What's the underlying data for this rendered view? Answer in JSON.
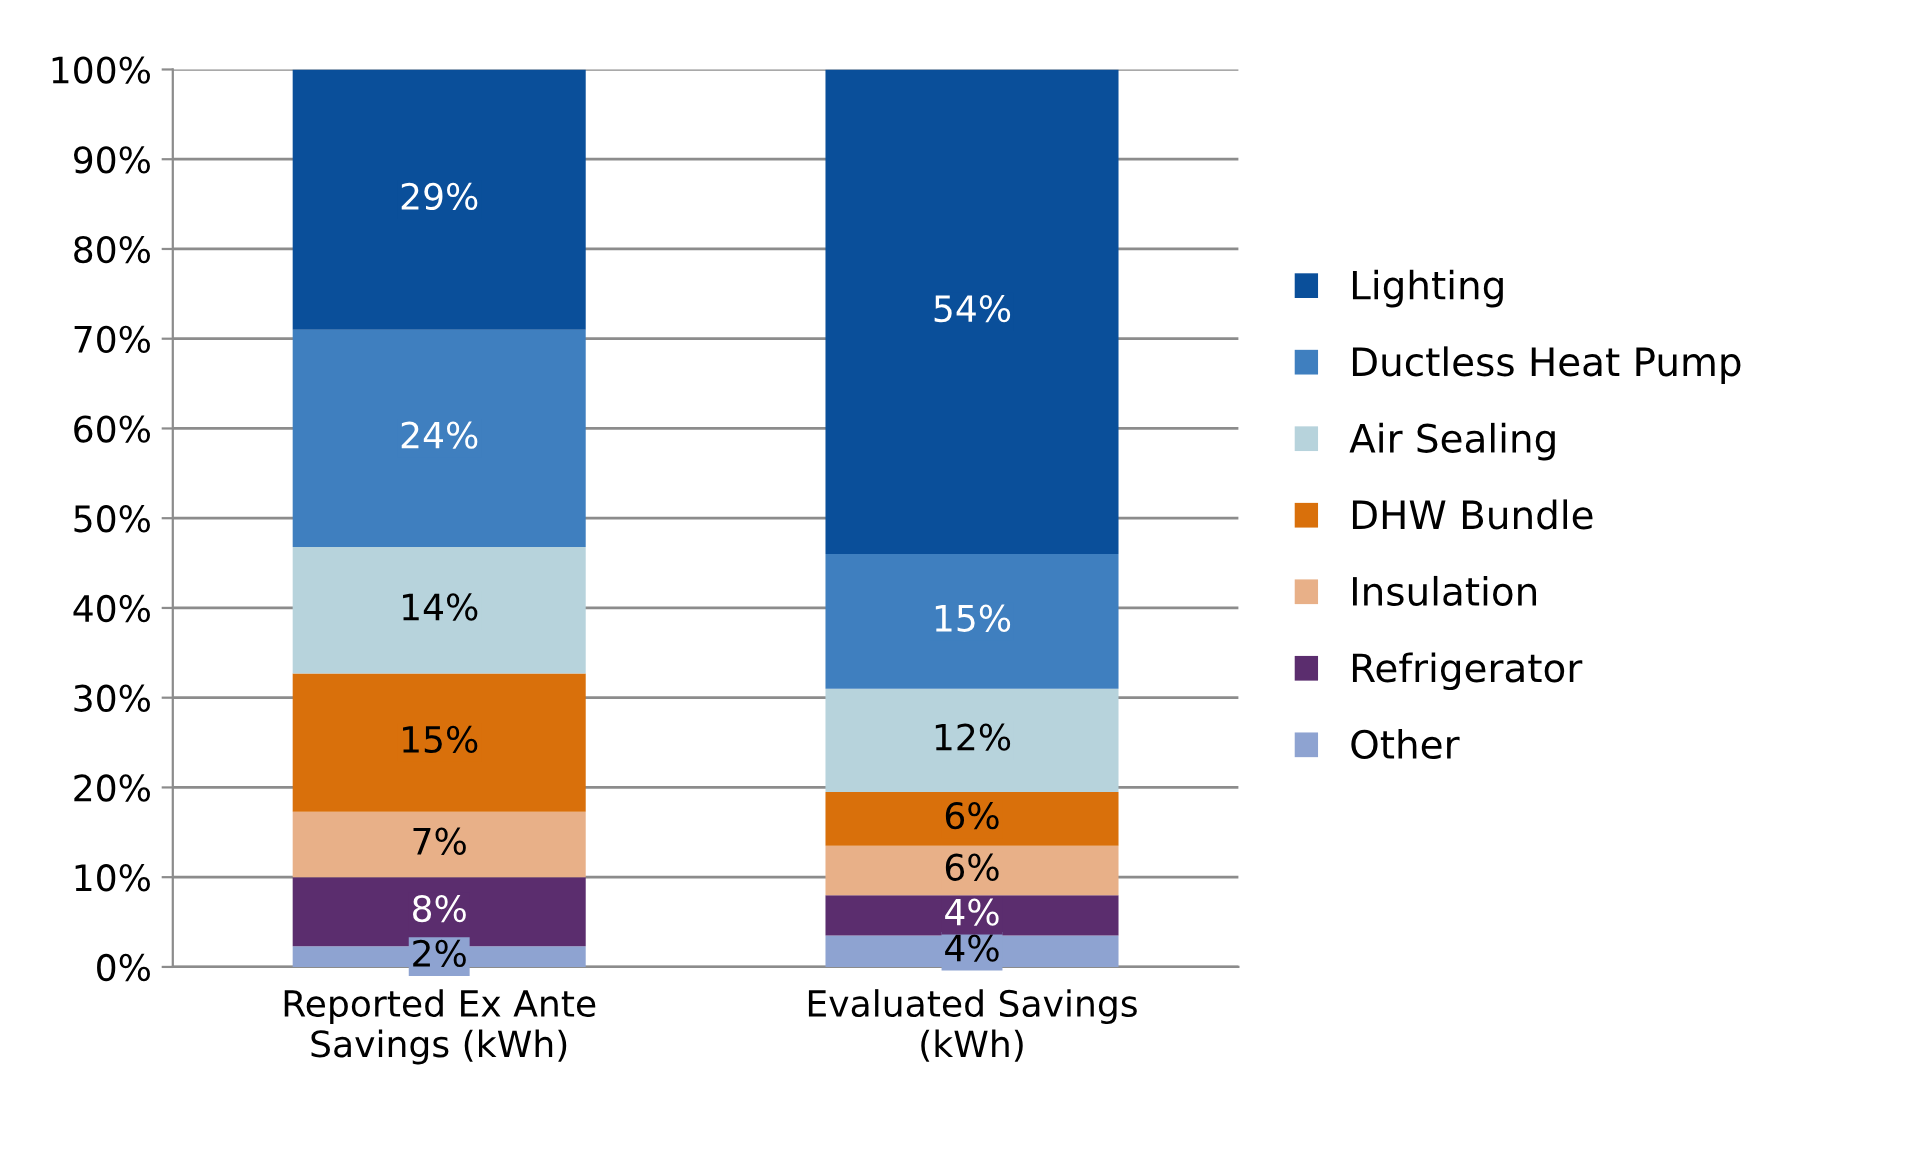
{
  "chart_data": {
    "type": "bar",
    "stacked": true,
    "categories": [
      "Reported Ex Ante\nSavings (kWh)",
      "Evaluated Savings\n(kWh)"
    ],
    "series": [
      {
        "name": "Other",
        "color": "#8ea3d1",
        "values": [
          2.3,
          3.5
        ],
        "value_labels": [
          "2%",
          "4%"
        ]
      },
      {
        "name": "Refrigerator",
        "color": "#5b2d6e",
        "values": [
          7.7,
          4.5
        ],
        "value_labels": [
          "8%",
          "4%"
        ]
      },
      {
        "name": "Insulation",
        "color": "#e8b088",
        "values": [
          7.3,
          5.5
        ],
        "value_labels": [
          "7%",
          "6%"
        ]
      },
      {
        "name": "DHW Bundle",
        "color": "#d9700b",
        "values": [
          15.4,
          6
        ],
        "value_labels": [
          "15%",
          "6%"
        ]
      },
      {
        "name": "Air Sealing",
        "color": "#b7d3dc",
        "values": [
          14.1,
          11.5
        ],
        "value_labels": [
          "14%",
          "12%"
        ]
      },
      {
        "name": "Ductless Heat Pump",
        "color": "#3f7fbf",
        "values": [
          24.2,
          15
        ],
        "value_labels": [
          "24%",
          "15%"
        ]
      },
      {
        "name": "Lighting",
        "color": "#0a4f9a",
        "values": [
          29,
          54
        ],
        "value_labels": [
          "29%",
          "54%"
        ]
      }
    ],
    "ylim": [
      0,
      100
    ],
    "yticks": [
      {
        "value": 0,
        "label": "0%"
      },
      {
        "value": 10,
        "label": "10%"
      },
      {
        "value": 20,
        "label": "20%"
      },
      {
        "value": 30,
        "label": "30%"
      },
      {
        "value": 40,
        "label": "40%"
      },
      {
        "value": 50,
        "label": "50%"
      },
      {
        "value": 60,
        "label": "60%"
      },
      {
        "value": 70,
        "label": "70%"
      },
      {
        "value": 80,
        "label": "80%"
      },
      {
        "value": 90,
        "label": "90%"
      },
      {
        "value": 100,
        "label": "100%"
      }
    ],
    "grid": "y",
    "legend": "right"
  }
}
